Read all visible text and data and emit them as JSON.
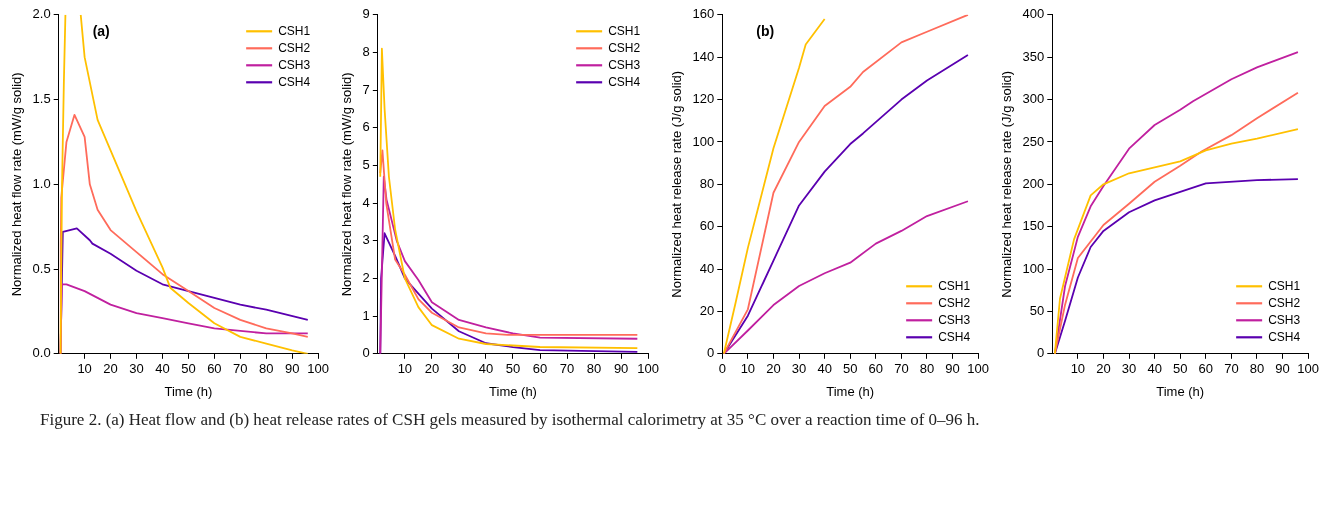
{
  "chart_data": [
    {
      "type": "line",
      "xlabel": "Time (h)",
      "ylabel": "Normalized heat flow rate (mW/g solid)",
      "annotations": [
        "(a)"
      ],
      "xlim": [
        0,
        100
      ],
      "xticks": [
        10,
        20,
        30,
        40,
        50,
        60,
        70,
        80,
        90,
        100
      ],
      "ylim": [
        0,
        2
      ],
      "yticks": [
        {
          "value": 0,
          "label": "0.0"
        },
        0.5,
        {
          "value": 1,
          "label": "1.0"
        },
        1.5,
        {
          "value": 2,
          "label": "2.0"
        }
      ],
      "legend": "top right",
      "series": [
        {
          "name": "CSH1",
          "color": "#ffc000",
          "x": [
            0.7,
            1.3,
            2,
            2.6,
            5,
            8.5,
            10,
            15,
            20,
            30,
            40,
            43,
            50,
            60,
            70,
            80,
            90,
            96
          ],
          "values": [
            0,
            1.0,
            1.6,
            2.0,
            null,
            2.0,
            1.75,
            1.38,
            1.2,
            0.84,
            0.51,
            0.39,
            0.3,
            0.18,
            0.1,
            0.06,
            0.02,
            0
          ]
        },
        {
          "name": "CSH2",
          "color": "#ff6b5b",
          "x": [
            0.7,
            0.8,
            1,
            3,
            6.1,
            10,
            12,
            15,
            20,
            30,
            40,
            50,
            60,
            70,
            80,
            90,
            96
          ],
          "values": [
            0,
            0.65,
            0.92,
            1.25,
            1.41,
            1.28,
            1.0,
            0.85,
            0.73,
            0.6,
            0.47,
            0.37,
            0.27,
            0.2,
            0.15,
            0.12,
            0.1
          ]
        },
        {
          "name": "CSH3",
          "color": "#c0209f",
          "x": [
            0.7,
            1.2,
            3,
            10,
            20,
            30,
            40,
            50,
            60,
            80,
            96
          ],
          "values": [
            0,
            0.41,
            0.41,
            0.37,
            0.29,
            0.24,
            0.21,
            0.18,
            0.15,
            0.12,
            0.12
          ]
        },
        {
          "name": "CSH4",
          "color": "#5a00b0",
          "x": [
            0.7,
            1.6,
            7,
            12,
            13,
            20,
            30,
            40,
            50,
            60,
            70,
            80,
            96
          ],
          "values": [
            0,
            0.72,
            0.74,
            0.67,
            0.65,
            0.59,
            0.49,
            0.41,
            0.37,
            0.33,
            0.29,
            0.26,
            0.2
          ]
        }
      ]
    },
    {
      "type": "line",
      "xlabel": "Time (h)",
      "ylabel": "Normalized heat flow rate (mW/g solid)",
      "xlim": [
        0,
        100
      ],
      "xticks": [
        10,
        20,
        30,
        40,
        50,
        60,
        70,
        80,
        90,
        100
      ],
      "ylim": [
        0,
        9
      ],
      "yticks": [
        0,
        1,
        2,
        3,
        4,
        5,
        6,
        7,
        8,
        9
      ],
      "legend": "top right",
      "series": [
        {
          "name": "CSH1",
          "color": "#ffc000",
          "x": [
            0.9,
            1.5,
            2.5,
            4.1,
            6.4,
            10,
            15,
            20,
            30,
            40,
            50,
            60,
            96
          ],
          "values": [
            4.7,
            8.1,
            6.5,
            4.7,
            3.3,
            2.0,
            1.24,
            0.76,
            0.4,
            0.26,
            0.22,
            0.18,
            0.15
          ]
        },
        {
          "name": "CSH2",
          "color": "#ff6b5b",
          "x": [
            0.9,
            1.7,
            3.1,
            6.4,
            10,
            15,
            20,
            30,
            40,
            48,
            96
          ],
          "values": [
            4.8,
            5.4,
            4.0,
            2.5,
            2.1,
            1.45,
            1.09,
            0.7,
            0.54,
            0.5,
            0.5
          ]
        },
        {
          "name": "CSH3",
          "color": "#c0209f",
          "x": [
            0.9,
            2.2,
            3.2,
            7,
            10,
            15,
            20,
            30,
            40,
            50,
            60,
            96
          ],
          "values": [
            0,
            4.7,
            4.1,
            3.0,
            2.46,
            1.96,
            1.37,
            0.9,
            0.7,
            0.54,
            0.43,
            0.4
          ]
        },
        {
          "name": "CSH4",
          "color": "#5a00b0",
          "x": [
            0.9,
            1.2,
            2.5,
            6.4,
            10,
            15,
            20,
            30,
            40,
            50,
            60,
            96
          ],
          "values": [
            0,
            2.0,
            3.2,
            2.6,
            2.0,
            1.6,
            1.2,
            0.6,
            0.28,
            0.18,
            0.1,
            0.05
          ]
        }
      ]
    },
    {
      "type": "line",
      "xlabel": "Time (h)",
      "ylabel": "Normalized heat release rate (J/g solid)",
      "annotations": [
        "(b)"
      ],
      "xlim": [
        0,
        100
      ],
      "xticks": [
        0,
        10,
        20,
        30,
        40,
        50,
        60,
        70,
        80,
        90,
        100
      ],
      "ylim": [
        0,
        160
      ],
      "yticks": [
        0,
        20,
        40,
        60,
        80,
        100,
        120,
        140,
        160
      ],
      "legend": "bottom right",
      "series": [
        {
          "name": "CSH1",
          "color": "#ffc000",
          "x": [
            0.6,
            5,
            10,
            20,
            30,
            32.6,
            40
          ],
          "values": [
            0,
            23,
            50,
            97,
            135,
            146,
            158
          ]
        },
        {
          "name": "CSH2",
          "color": "#ff6b5b",
          "x": [
            0.6,
            10,
            20,
            30,
            40,
            50,
            55,
            70,
            80,
            96
          ],
          "values": [
            0,
            21,
            76,
            100,
            117,
            126,
            133,
            147,
            152,
            160
          ]
        },
        {
          "name": "CSH3",
          "color": "#c0209f",
          "x": [
            0.6,
            10,
            20,
            30,
            40,
            50,
            60,
            70,
            80,
            96
          ],
          "values": [
            0,
            11,
            23,
            32,
            38,
            43,
            52,
            58,
            65,
            72
          ]
        },
        {
          "name": "CSH4",
          "color": "#5a00b0",
          "x": [
            0.6,
            10,
            20,
            30,
            40,
            50,
            55,
            70,
            80,
            96
          ],
          "values": [
            0,
            18,
            44,
            70,
            86,
            99,
            104,
            120,
            129,
            141
          ]
        }
      ]
    },
    {
      "type": "line",
      "xlabel": "Time (h)",
      "ylabel": "Normalized heat release rate (J/g solid)",
      "xlim": [
        0,
        100
      ],
      "xticks": [
        10,
        20,
        30,
        40,
        50,
        60,
        70,
        80,
        90,
        100
      ],
      "ylim": [
        0,
        400
      ],
      "yticks": [
        0,
        50,
        100,
        150,
        200,
        250,
        300,
        350,
        400
      ],
      "legend": "bottom right",
      "series": [
        {
          "name": "CSH1",
          "color": "#ffc000",
          "x": [
            1,
            3,
            8.5,
            15,
            20,
            30,
            40,
            50,
            60,
            70,
            80,
            96
          ],
          "values": [
            0,
            65,
            135,
            187,
            200,
            213,
            220,
            227,
            240,
            248,
            254,
            265
          ]
        },
        {
          "name": "CSH2",
          "color": "#ff6b5b",
          "x": [
            1,
            5,
            10,
            20,
            30,
            40,
            50,
            58.5,
            70,
            80,
            96
          ],
          "values": [
            0,
            58,
            113,
            152,
            177,
            203,
            222,
            239,
            258,
            278,
            308
          ]
        },
        {
          "name": "CSH3",
          "color": "#c0209f",
          "x": [
            1,
            5,
            10,
            15,
            20,
            30,
            40,
            50,
            55,
            70,
            80,
            96
          ],
          "values": [
            0,
            80,
            138,
            174,
            198,
            242,
            270,
            288,
            298,
            324,
            338,
            356
          ]
        },
        {
          "name": "CSH4",
          "color": "#5a00b0",
          "x": [
            1,
            5,
            10,
            15,
            20,
            30,
            40,
            50,
            60,
            80,
            96
          ],
          "values": [
            0,
            39,
            90,
            126,
            145,
            167,
            181,
            191,
            201,
            205,
            206
          ]
        }
      ]
    },
    {
      "type": "other",
      "annotations": [
        "Figure 2. (a) Heat flow and (b) heat release rates of CSH gels measured by isothermal calorimetry at 35 °C over a reaction time of 0–96 h."
      ]
    }
  ]
}
